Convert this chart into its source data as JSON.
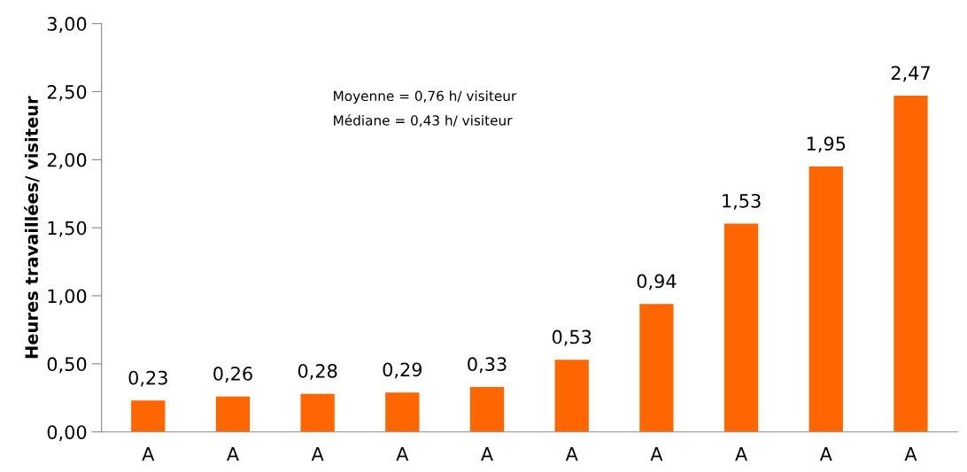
{
  "chart_data": {
    "type": "bar",
    "ylabel": "Heures travaillées/ visiteur",
    "categories": [
      "A",
      "A",
      "A",
      "A",
      "A",
      "A",
      "A",
      "A",
      "A",
      "A"
    ],
    "values": [
      0.23,
      0.26,
      0.28,
      0.29,
      0.33,
      0.53,
      0.94,
      1.53,
      1.95,
      2.47
    ],
    "value_labels": [
      "0,23",
      "0,26",
      "0,28",
      "0,29",
      "0,33",
      "0,53",
      "0,94",
      "1,53",
      "1,95",
      "2,47"
    ],
    "color": "#ff6600",
    "ylim": [
      0,
      3
    ],
    "yticks": [
      {
        "value": 0,
        "label": "0,00"
      },
      {
        "value": 0.5,
        "label": "0,50"
      },
      {
        "value": 1,
        "label": "1,00"
      },
      {
        "value": 1.5,
        "label": "1,50"
      },
      {
        "value": 2,
        "label": "2,00"
      },
      {
        "value": 2.5,
        "label": "2,50"
      },
      {
        "value": 3,
        "label": "3,00"
      }
    ],
    "annotations": [
      "Moyenne = 0,76 h/ visiteur",
      "Médiane = 0,43 h/ visiteur"
    ],
    "grid": false,
    "legend": false
  }
}
